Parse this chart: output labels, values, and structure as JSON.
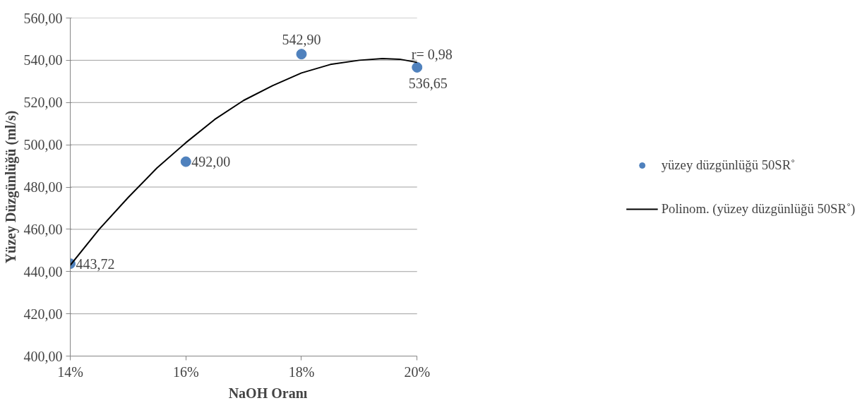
{
  "chart_data": {
    "type": "scatter",
    "xlabel": "NaOH Oranı",
    "ylabel": "Yüzey Düzgünlüğü (ml/s)",
    "x": [
      14,
      16,
      18,
      20
    ],
    "series": [
      {
        "name": "yüzey düzgünlüğü 50SR˚",
        "color": "#4f81bd",
        "marker": "circle",
        "values": [
          443.72,
          492.0,
          542.9,
          536.65
        ],
        "value_labels": [
          "443,72",
          "492,00",
          "542,90",
          "536,65"
        ]
      },
      {
        "name": "Polinom. (yüzey düzgünlüğü 50SR˚)",
        "type": "line",
        "color": "#000000",
        "line_style": "solid",
        "marker": "none",
        "x": [
          14,
          14.5,
          15,
          15.5,
          16,
          16.5,
          17,
          17.5,
          18,
          18.5,
          19,
          19.4,
          19.7,
          20
        ],
        "values": [
          443,
          460,
          475,
          489,
          501,
          512,
          521,
          528,
          534,
          538,
          540,
          540.8,
          540.5,
          539
        ]
      }
    ],
    "annotations": [
      "r= 0,98"
    ],
    "xlim": [
      14,
      20
    ],
    "ylim": [
      400,
      560
    ],
    "xticks": [
      {
        "value": 14,
        "label": "14%"
      },
      {
        "value": 16,
        "label": "16%"
      },
      {
        "value": 18,
        "label": "18%"
      },
      {
        "value": 20,
        "label": "20%"
      }
    ],
    "yticks": [
      {
        "value": 400,
        "label": "400,00"
      },
      {
        "value": 420,
        "label": "420,00"
      },
      {
        "value": 440,
        "label": "440,00"
      },
      {
        "value": 460,
        "label": "460,00"
      },
      {
        "value": 480,
        "label": "480,00"
      },
      {
        "value": 500,
        "label": "500,00"
      },
      {
        "value": 520,
        "label": "520,00"
      },
      {
        "value": 540,
        "label": "540,00"
      },
      {
        "value": 560,
        "label": "560,00"
      }
    ],
    "grid": "y",
    "legend": "right"
  }
}
